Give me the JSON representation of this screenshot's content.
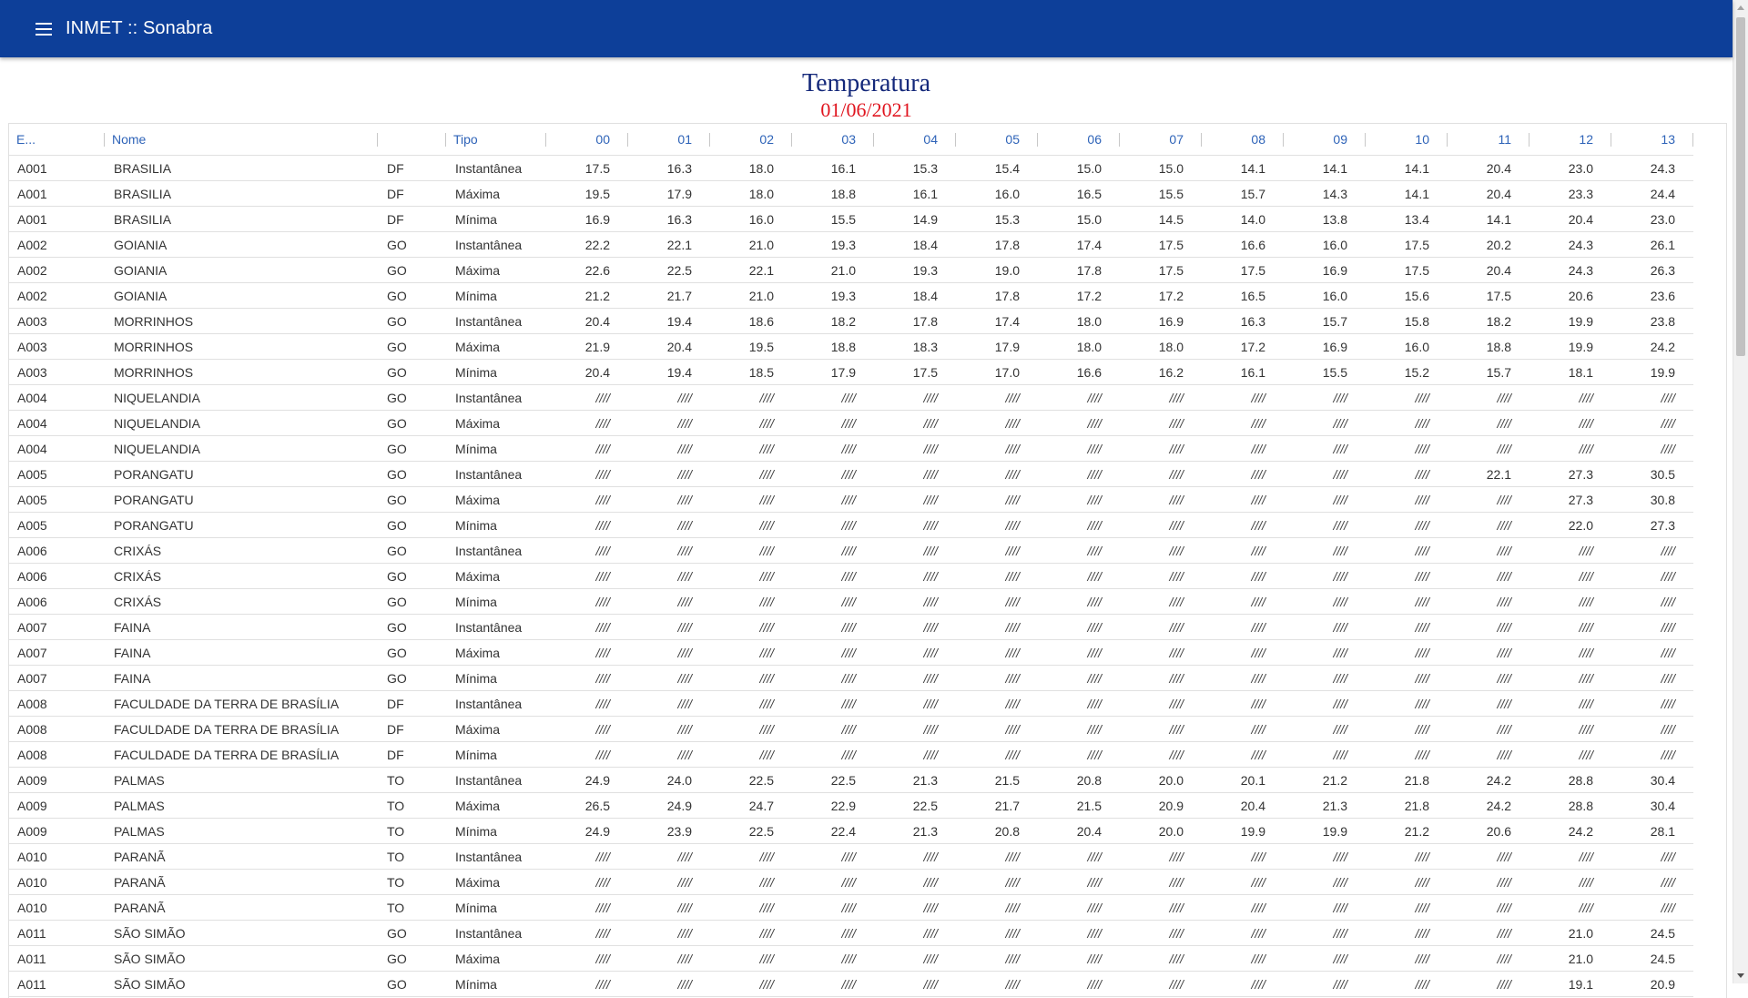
{
  "app": {
    "title": "INMET :: Sonabra",
    "menu_icon": "menu-icon"
  },
  "page": {
    "title": "Temperatura",
    "date": "01/06/2021"
  },
  "colors": {
    "appbar": "#0d3f99",
    "title": "#14287a",
    "date": "#e0141e",
    "header_text": "#2e63b8"
  },
  "table": {
    "headers": [
      "E...",
      "Nome",
      "",
      "Tipo",
      "00",
      "01",
      "02",
      "03",
      "04",
      "05",
      "06",
      "07",
      "08",
      "09",
      "10",
      "11",
      "12",
      "13"
    ],
    "rows": [
      [
        "A001",
        "BRASILIA",
        "DF",
        "Instantânea",
        "17.5",
        "16.3",
        "18.0",
        "16.1",
        "15.3",
        "15.4",
        "15.0",
        "15.0",
        "14.1",
        "14.1",
        "14.1",
        "20.4",
        "23.0",
        "24.3"
      ],
      [
        "A001",
        "BRASILIA",
        "DF",
        "Máxima",
        "19.5",
        "17.9",
        "18.0",
        "18.8",
        "16.1",
        "16.0",
        "16.5",
        "15.5",
        "15.7",
        "14.3",
        "14.1",
        "20.4",
        "23.3",
        "24.4"
      ],
      [
        "A001",
        "BRASILIA",
        "DF",
        "Mínima",
        "16.9",
        "16.3",
        "16.0",
        "15.5",
        "14.9",
        "15.3",
        "15.0",
        "14.5",
        "14.0",
        "13.8",
        "13.4",
        "14.1",
        "20.4",
        "23.0"
      ],
      [
        "A002",
        "GOIANIA",
        "GO",
        "Instantânea",
        "22.2",
        "22.1",
        "21.0",
        "19.3",
        "18.4",
        "17.8",
        "17.4",
        "17.5",
        "16.6",
        "16.0",
        "17.5",
        "20.2",
        "24.3",
        "26.1"
      ],
      [
        "A002",
        "GOIANIA",
        "GO",
        "Máxima",
        "22.6",
        "22.5",
        "22.1",
        "21.0",
        "19.3",
        "19.0",
        "17.8",
        "17.5",
        "17.5",
        "16.9",
        "17.5",
        "20.4",
        "24.3",
        "26.3"
      ],
      [
        "A002",
        "GOIANIA",
        "GO",
        "Mínima",
        "21.2",
        "21.7",
        "21.0",
        "19.3",
        "18.4",
        "17.8",
        "17.2",
        "17.2",
        "16.5",
        "16.0",
        "15.6",
        "17.5",
        "20.6",
        "23.6"
      ],
      [
        "A003",
        "MORRINHOS",
        "GO",
        "Instantânea",
        "20.4",
        "19.4",
        "18.6",
        "18.2",
        "17.8",
        "17.4",
        "18.0",
        "16.9",
        "16.3",
        "15.7",
        "15.8",
        "18.2",
        "19.9",
        "23.8"
      ],
      [
        "A003",
        "MORRINHOS",
        "GO",
        "Máxima",
        "21.9",
        "20.4",
        "19.5",
        "18.8",
        "18.3",
        "17.9",
        "18.0",
        "18.0",
        "17.2",
        "16.9",
        "16.0",
        "18.8",
        "19.9",
        "24.2"
      ],
      [
        "A003",
        "MORRINHOS",
        "GO",
        "Mínima",
        "20.4",
        "19.4",
        "18.5",
        "17.9",
        "17.5",
        "17.0",
        "16.6",
        "16.2",
        "16.1",
        "15.5",
        "15.2",
        "15.7",
        "18.1",
        "19.9"
      ],
      [
        "A004",
        "NIQUELANDIA",
        "GO",
        "Instantânea",
        "////",
        "////",
        "////",
        "////",
        "////",
        "////",
        "////",
        "////",
        "////",
        "////",
        "////",
        "////",
        "////",
        "////"
      ],
      [
        "A004",
        "NIQUELANDIA",
        "GO",
        "Máxima",
        "////",
        "////",
        "////",
        "////",
        "////",
        "////",
        "////",
        "////",
        "////",
        "////",
        "////",
        "////",
        "////",
        "////"
      ],
      [
        "A004",
        "NIQUELANDIA",
        "GO",
        "Mínima",
        "////",
        "////",
        "////",
        "////",
        "////",
        "////",
        "////",
        "////",
        "////",
        "////",
        "////",
        "////",
        "////",
        "////"
      ],
      [
        "A005",
        "PORANGATU",
        "GO",
        "Instantânea",
        "////",
        "////",
        "////",
        "////",
        "////",
        "////",
        "////",
        "////",
        "////",
        "////",
        "////",
        "22.1",
        "27.3",
        "30.5"
      ],
      [
        "A005",
        "PORANGATU",
        "GO",
        "Máxima",
        "////",
        "////",
        "////",
        "////",
        "////",
        "////",
        "////",
        "////",
        "////",
        "////",
        "////",
        "////",
        "27.3",
        "30.8"
      ],
      [
        "A005",
        "PORANGATU",
        "GO",
        "Mínima",
        "////",
        "////",
        "////",
        "////",
        "////",
        "////",
        "////",
        "////",
        "////",
        "////",
        "////",
        "////",
        "22.0",
        "27.3"
      ],
      [
        "A006",
        "CRIXÁS",
        "GO",
        "Instantânea",
        "////",
        "////",
        "////",
        "////",
        "////",
        "////",
        "////",
        "////",
        "////",
        "////",
        "////",
        "////",
        "////",
        "////"
      ],
      [
        "A006",
        "CRIXÁS",
        "GO",
        "Máxima",
        "////",
        "////",
        "////",
        "////",
        "////",
        "////",
        "////",
        "////",
        "////",
        "////",
        "////",
        "////",
        "////",
        "////"
      ],
      [
        "A006",
        "CRIXÁS",
        "GO",
        "Mínima",
        "////",
        "////",
        "////",
        "////",
        "////",
        "////",
        "////",
        "////",
        "////",
        "////",
        "////",
        "////",
        "////",
        "////"
      ],
      [
        "A007",
        "FAINA",
        "GO",
        "Instantânea",
        "////",
        "////",
        "////",
        "////",
        "////",
        "////",
        "////",
        "////",
        "////",
        "////",
        "////",
        "////",
        "////",
        "////"
      ],
      [
        "A007",
        "FAINA",
        "GO",
        "Máxima",
        "////",
        "////",
        "////",
        "////",
        "////",
        "////",
        "////",
        "////",
        "////",
        "////",
        "////",
        "////",
        "////",
        "////"
      ],
      [
        "A007",
        "FAINA",
        "GO",
        "Mínima",
        "////",
        "////",
        "////",
        "////",
        "////",
        "////",
        "////",
        "////",
        "////",
        "////",
        "////",
        "////",
        "////",
        "////"
      ],
      [
        "A008",
        "FACULDADE DA TERRA DE BRASÍLIA",
        "DF",
        "Instantânea",
        "////",
        "////",
        "////",
        "////",
        "////",
        "////",
        "////",
        "////",
        "////",
        "////",
        "////",
        "////",
        "////",
        "////"
      ],
      [
        "A008",
        "FACULDADE DA TERRA DE BRASÍLIA",
        "DF",
        "Máxima",
        "////",
        "////",
        "////",
        "////",
        "////",
        "////",
        "////",
        "////",
        "////",
        "////",
        "////",
        "////",
        "////",
        "////"
      ],
      [
        "A008",
        "FACULDADE DA TERRA DE BRASÍLIA",
        "DF",
        "Mínima",
        "////",
        "////",
        "////",
        "////",
        "////",
        "////",
        "////",
        "////",
        "////",
        "////",
        "////",
        "////",
        "////",
        "////"
      ],
      [
        "A009",
        "PALMAS",
        "TO",
        "Instantânea",
        "24.9",
        "24.0",
        "22.5",
        "22.5",
        "21.3",
        "21.5",
        "20.8",
        "20.0",
        "20.1",
        "21.2",
        "21.8",
        "24.2",
        "28.8",
        "30.4"
      ],
      [
        "A009",
        "PALMAS",
        "TO",
        "Máxima",
        "26.5",
        "24.9",
        "24.7",
        "22.9",
        "22.5",
        "21.7",
        "21.5",
        "20.9",
        "20.4",
        "21.3",
        "21.8",
        "24.2",
        "28.8",
        "30.4"
      ],
      [
        "A009",
        "PALMAS",
        "TO",
        "Mínima",
        "24.9",
        "23.9",
        "22.5",
        "22.4",
        "21.3",
        "20.8",
        "20.4",
        "20.0",
        "19.9",
        "19.9",
        "21.2",
        "20.6",
        "24.2",
        "28.1"
      ],
      [
        "A010",
        "PARANÃ",
        "TO",
        "Instantânea",
        "////",
        "////",
        "////",
        "////",
        "////",
        "////",
        "////",
        "////",
        "////",
        "////",
        "////",
        "////",
        "////",
        "////"
      ],
      [
        "A010",
        "PARANÃ",
        "TO",
        "Máxima",
        "////",
        "////",
        "////",
        "////",
        "////",
        "////",
        "////",
        "////",
        "////",
        "////",
        "////",
        "////",
        "////",
        "////"
      ],
      [
        "A010",
        "PARANÃ",
        "TO",
        "Mínima",
        "////",
        "////",
        "////",
        "////",
        "////",
        "////",
        "////",
        "////",
        "////",
        "////",
        "////",
        "////",
        "////",
        "////"
      ],
      [
        "A011",
        "SÃO SIMÃO",
        "GO",
        "Instantânea",
        "////",
        "////",
        "////",
        "////",
        "////",
        "////",
        "////",
        "////",
        "////",
        "////",
        "////",
        "////",
        "21.0",
        "24.5"
      ],
      [
        "A011",
        "SÃO SIMÃO",
        "GO",
        "Máxima",
        "////",
        "////",
        "////",
        "////",
        "////",
        "////",
        "////",
        "////",
        "////",
        "////",
        "////",
        "////",
        "21.0",
        "24.5"
      ],
      [
        "A011",
        "SÃO SIMÃO",
        "GO",
        "Mínima",
        "////",
        "////",
        "////",
        "////",
        "////",
        "////",
        "////",
        "////",
        "////",
        "////",
        "////",
        "////",
        "19.1",
        "20.9"
      ]
    ]
  }
}
